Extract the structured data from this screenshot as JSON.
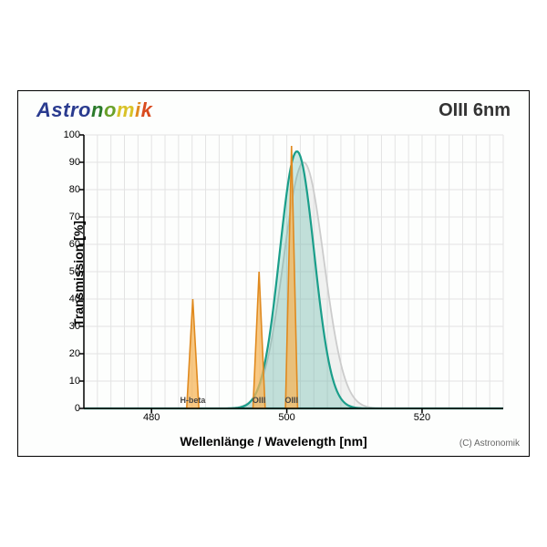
{
  "brand": {
    "text": "Astronomik",
    "letter_colors": [
      "#2a3b8f",
      "#2a3b8f",
      "#2a3b8f",
      "#2a3b8f",
      "#2a3b8f",
      "#2a7a2a",
      "#6aa12a",
      "#d9c227",
      "#e08a1f",
      "#d94b1f",
      "#c72a2a"
    ]
  },
  "title_right": "OIII 6nm",
  "ylabel": "Transmission [%]",
  "xlabel": "Wellenlänge / Wavelength [nm]",
  "copyright": "(C) Astronomik",
  "axes": {
    "xlim": [
      470,
      532
    ],
    "ylim": [
      0,
      100
    ],
    "xticks": [
      480,
      500,
      520
    ],
    "yticks": [
      0,
      10,
      20,
      30,
      40,
      50,
      60,
      70,
      80,
      90,
      100
    ],
    "x_minor_step": 2,
    "grid_color": "#e3e3e3",
    "axis_color": "#000000",
    "background": "#fdfefd"
  },
  "filter_curve": {
    "type": "gaussian",
    "center_nm": 501.5,
    "fwhm_nm": 6.0,
    "peak_pct": 94,
    "stroke": "#1a9e8a",
    "stroke_width": 2.2,
    "fill": "#1a9e8a",
    "fill_opacity": 0.22
  },
  "shadow_curve": {
    "type": "gaussian",
    "center_nm": 502.5,
    "fwhm_nm": 7.0,
    "peak_pct": 90,
    "stroke": "#cccccc",
    "stroke_width": 1.8,
    "fill": "#cccccc",
    "fill_opacity": 0.25
  },
  "emission_lines": [
    {
      "name": "H-beta",
      "nm": 486.1,
      "height_pct": 40,
      "width_nm": 0.9
    },
    {
      "name": "OIII",
      "nm": 495.9,
      "height_pct": 50,
      "width_nm": 0.9
    },
    {
      "name": "OIII",
      "nm": 500.7,
      "height_pct": 96,
      "width_nm": 0.9
    }
  ],
  "emission_style": {
    "stroke": "#e08a1f",
    "stroke_width": 1.6,
    "fill": "#f5b65a",
    "fill_opacity": 0.75,
    "label_fontsize": 9
  }
}
